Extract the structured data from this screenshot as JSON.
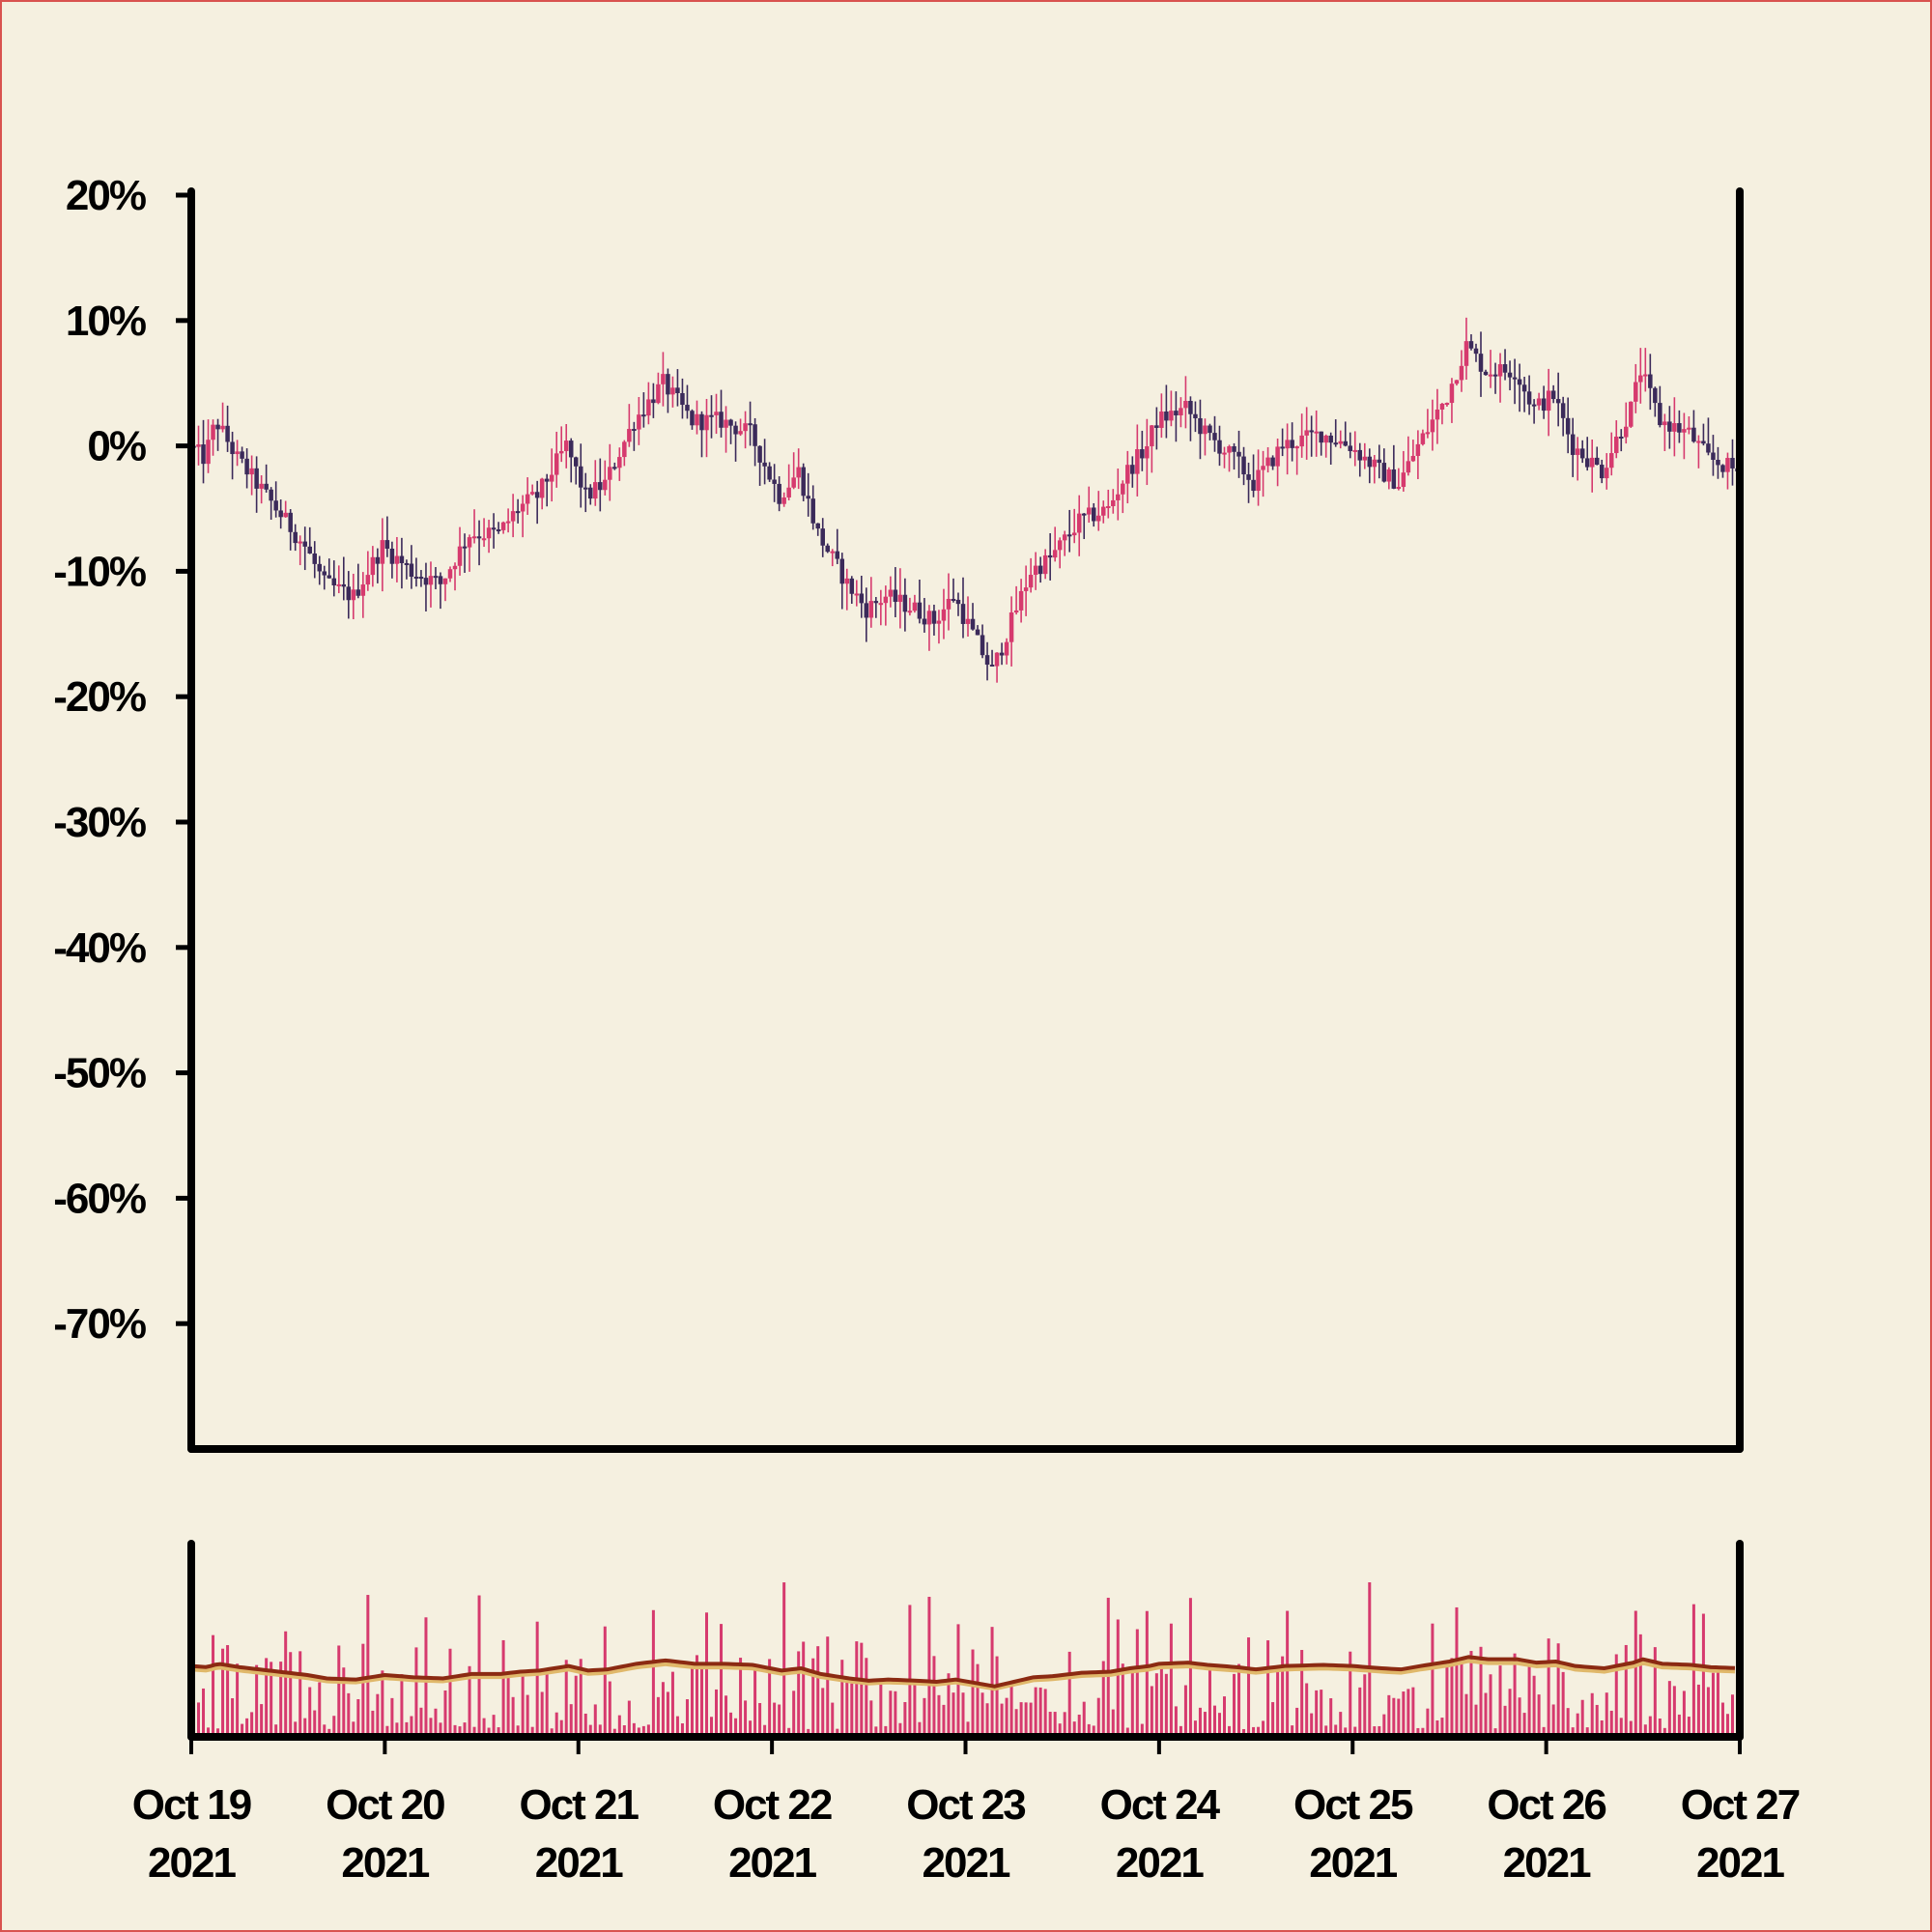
{
  "chart_data": [
    {
      "type": "candlestick",
      "title": "",
      "xlabel": "",
      "ylabel": "",
      "ylim": [
        -80,
        20
      ],
      "y_ticks": [
        20,
        10,
        0,
        -10,
        -20,
        -30,
        -40,
        -50,
        -60,
        -70
      ],
      "y_tick_format": "percent",
      "x_range": [
        "2021-10-19",
        "2021-10-27"
      ],
      "grid": false,
      "colors": {
        "up": "#d63a6e",
        "down": "#3b2a5a",
        "background": "#f5f0e0"
      },
      "close_pct_path": [
        [
          0,
          0
        ],
        [
          0.08,
          -1
        ],
        [
          0.14,
          2
        ],
        [
          0.25,
          -1
        ],
        [
          0.45,
          -5
        ],
        [
          0.6,
          -8
        ],
        [
          0.7,
          -11
        ],
        [
          0.85,
          -12
        ],
        [
          1.0,
          -8
        ],
        [
          1.15,
          -10
        ],
        [
          1.3,
          -11
        ],
        [
          1.45,
          -7
        ],
        [
          1.6,
          -7
        ],
        [
          1.7,
          -5
        ],
        [
          1.8,
          -4
        ],
        [
          1.95,
          0
        ],
        [
          2.05,
          -4
        ],
        [
          2.15,
          -3
        ],
        [
          2.3,
          2
        ],
        [
          2.45,
          5
        ],
        [
          2.6,
          2
        ],
        [
          2.75,
          2
        ],
        [
          2.9,
          1
        ],
        [
          3.05,
          -4
        ],
        [
          3.15,
          -2
        ],
        [
          3.25,
          -7
        ],
        [
          3.4,
          -11
        ],
        [
          3.5,
          -13
        ],
        [
          3.6,
          -12
        ],
        [
          3.75,
          -13
        ],
        [
          3.85,
          -14
        ],
        [
          3.95,
          -12
        ],
        [
          4.05,
          -15
        ],
        [
          4.15,
          -18
        ],
        [
          4.25,
          -14
        ],
        [
          4.35,
          -10
        ],
        [
          4.45,
          -9
        ],
        [
          4.6,
          -6
        ],
        [
          4.75,
          -5
        ],
        [
          4.85,
          -2
        ],
        [
          4.95,
          0
        ],
        [
          5.0,
          2
        ],
        [
          5.15,
          3
        ],
        [
          5.25,
          1
        ],
        [
          5.4,
          -1
        ],
        [
          5.5,
          -3
        ],
        [
          5.65,
          0
        ],
        [
          5.85,
          1
        ],
        [
          6.0,
          0
        ],
        [
          6.15,
          -2
        ],
        [
          6.25,
          -3
        ],
        [
          6.35,
          0
        ],
        [
          6.5,
          4
        ],
        [
          6.6,
          8
        ],
        [
          6.7,
          6
        ],
        [
          6.85,
          6
        ],
        [
          6.95,
          3
        ],
        [
          7.05,
          4
        ],
        [
          7.15,
          0
        ],
        [
          7.3,
          -2
        ],
        [
          7.45,
          3
        ],
        [
          7.5,
          6
        ],
        [
          7.6,
          2
        ],
        [
          7.75,
          1
        ],
        [
          7.85,
          -1
        ],
        [
          8.0,
          -2
        ]
      ]
    },
    {
      "type": "bar",
      "subtype": "volume",
      "colors": {
        "bar": "#d63a6e",
        "ma_fast": "#8b2a12",
        "ma_slow": "#e0b86a"
      },
      "x_ticks": [
        {
          "line1": "Oct 19",
          "line2": "2021"
        },
        {
          "line1": "Oct 20",
          "line2": "2021"
        },
        {
          "line1": "Oct 21",
          "line2": "2021"
        },
        {
          "line1": "Oct 22",
          "line2": "2021"
        },
        {
          "line1": "Oct 23",
          "line2": "2021"
        },
        {
          "line1": "Oct 24",
          "line2": "2021"
        },
        {
          "line1": "Oct 25",
          "line2": "2021"
        },
        {
          "line1": "Oct 26",
          "line2": "2021"
        },
        {
          "line1": "Oct 27",
          "line2": "2021"
        }
      ]
    }
  ]
}
